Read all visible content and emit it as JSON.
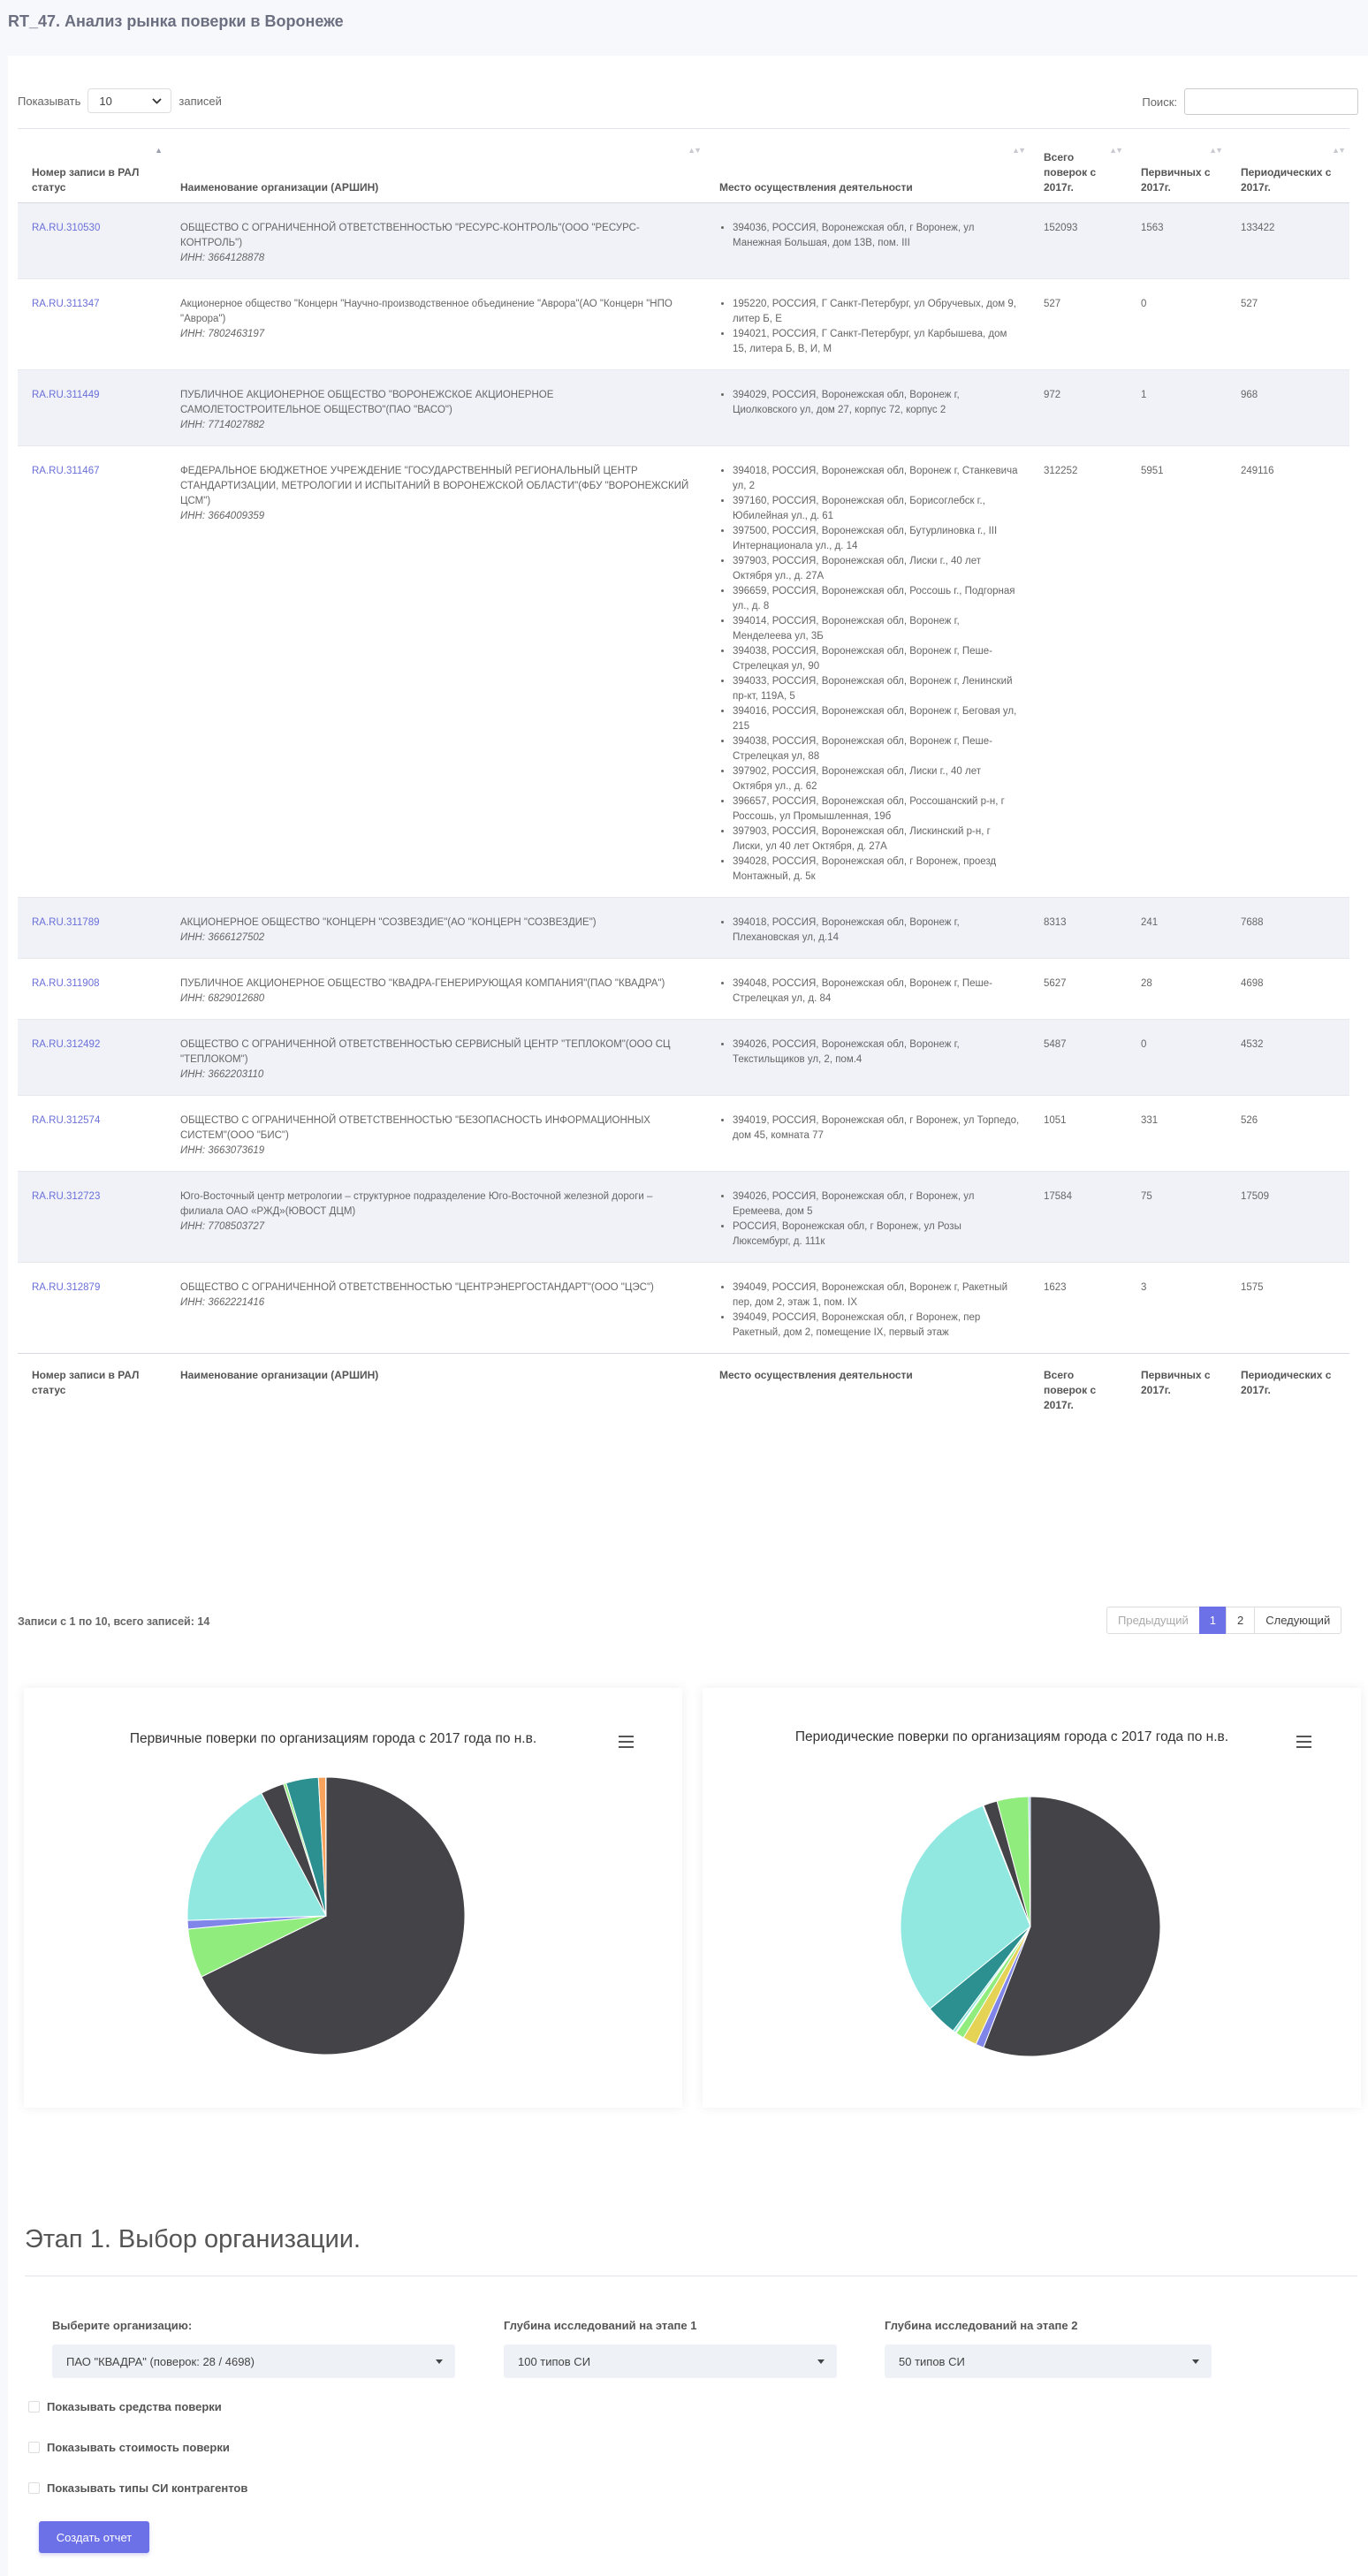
{
  "page_title": "RT_47. Анализ рынка поверки в Воронеже",
  "controls": {
    "show_label": "Показывать",
    "length_value": "10",
    "records_label": "записей",
    "search_label": "Поиск:",
    "search_value": ""
  },
  "table": {
    "headers": [
      "Номер записи в РАЛ статус",
      "Наименование организации (АРШИН)",
      "Место осуществления деятельности",
      "Всего поверок с 2017г.",
      "Первичных с 2017г.",
      "Периодических с 2017г."
    ],
    "rows": [
      {
        "id": "RA.RU.310530",
        "org": "ОБЩЕСТВО С ОГРАНИЧЕННОЙ ОТВЕТСТВЕННОСТЬЮ \"РЕСУРС-КОНТРОЛЬ\"(ООО \"РЕСУРС-КОНТРОЛЬ\")",
        "inn": "ИНН: 3664128878",
        "places": [
          "394036, РОССИЯ, Воронежская обл, г Воронеж, ул Манежная Большая, дом 13В, пом. III"
        ],
        "total": "152093",
        "primary": "1563",
        "periodic": "133422"
      },
      {
        "id": "RA.RU.311347",
        "org": "Акционерное общество \"Концерн \"Научно-производственное объединение \"Аврора\"(АО \"Концерн \"НПО \"Аврора\")",
        "inn": "ИНН: 7802463197",
        "places": [
          "195220, РОССИЯ, Г Санкт-Петербург, ул Обручевых, дом 9, литер Б, Е",
          "194021, РОССИЯ, Г Санкт-Петербург, ул Карбышева, дом 15, литера Б, В, И, М"
        ],
        "total": "527",
        "primary": "0",
        "periodic": "527"
      },
      {
        "id": "RA.RU.311449",
        "org": "ПУБЛИЧНОЕ АКЦИОНЕРНОЕ ОБЩЕСТВО \"ВОРОНЕЖСКОЕ АКЦИОНЕРНОЕ САМОЛЕТОСТРОИТЕЛЬНОЕ ОБЩЕСТВО\"(ПАО \"ВАСО\")",
        "inn": "ИНН: 7714027882",
        "places": [
          "394029, РОССИЯ, Воронежская обл, Воронеж г, Циолковского ул, дом 27, корпус 72, корпус 2"
        ],
        "total": "972",
        "primary": "1",
        "periodic": "968"
      },
      {
        "id": "RA.RU.311467",
        "org": "ФЕДЕРАЛЬНОЕ БЮДЖЕТНОЕ УЧРЕЖДЕНИЕ \"ГОСУДАРСТВЕННЫЙ РЕГИОНАЛЬНЫЙ ЦЕНТР СТАНДАРТИЗАЦИИ, МЕТРОЛОГИИ И ИСПЫТАНИЙ В ВОРОНЕЖСКОЙ ОБЛАСТИ\"(ФБУ \"ВОРОНЕЖСКИЙ ЦСМ\")",
        "inn": "ИНН: 3664009359",
        "places": [
          "394018, РОССИЯ, Воронежская обл, Воронеж г, Станкевича ул, 2",
          "397160, РОССИЯ, Воронежская обл, Борисоглебск г., Юбилейная ул., д. 61",
          "397500, РОССИЯ, Воронежская обл, Бутурлиновка г., III Интернационала ул., д. 14",
          "397903, РОССИЯ, Воронежская обл, Лиски г., 40 лет Октября ул., д. 27А",
          "396659, РОССИЯ, Воронежская обл, Россошь г., Подгорная ул., д. 8",
          "394014, РОССИЯ, Воронежская обл, Воронеж г, Менделеева ул, 3Б",
          "394038, РОССИЯ, Воронежская обл, Воронеж г, Пеше-Стрелецкая ул, 90",
          "394033, РОССИЯ, Воронежская обл, Воронеж г, Ленинский пр-кт, 119А, 5",
          "394016, РОССИЯ, Воронежская обл, Воронеж г, Беговая ул, 215",
          "394038, РОССИЯ, Воронежская обл, Воронеж г, Пеше-Стрелецкая ул, 88",
          "397902, РОССИЯ, Воронежская обл, Лиски г., 40 лет Октября ул., д. 62",
          "396657, РОССИЯ, Воронежская обл, Россошанский р-н, г Россошь, ул Промышленная, 19б",
          "397903, РОССИЯ, Воронежская обл, Лискинский р-н, г Лиски, ул 40 лет Октября, д. 27А",
          "394028, РОССИЯ, Воронежская обл, г Воронеж, проезд Монтажный, д. 5к"
        ],
        "total": "312252",
        "primary": "5951",
        "periodic": "249116"
      },
      {
        "id": "RA.RU.311789",
        "org": "АКЦИОНЕРНОЕ ОБЩЕСТВО \"КОНЦЕРН \"СОЗВЕЗДИЕ\"(АО \"КОНЦЕРН \"СОЗВЕЗДИЕ\")",
        "inn": "ИНН: 3666127502",
        "places": [
          "394018, РОССИЯ, Воронежская обл, Воронеж г, Плехановская ул, д.14"
        ],
        "total": "8313",
        "primary": "241",
        "periodic": "7688"
      },
      {
        "id": "RA.RU.311908",
        "org": "ПУБЛИЧНОЕ АКЦИОНЕРНОЕ ОБЩЕСТВО \"КВАДРА-ГЕНЕРИРУЮЩАЯ КОМПАНИЯ\"(ПАО \"КВАДРА\")",
        "inn": "ИНН: 6829012680",
        "places": [
          "394048, РОССИЯ, Воронежская обл, Воронеж г, Пеше-Стрелецкая ул, д. 84"
        ],
        "total": "5627",
        "primary": "28",
        "periodic": "4698"
      },
      {
        "id": "RA.RU.312492",
        "org": "ОБЩЕСТВО С ОГРАНИЧЕННОЙ ОТВЕТСТВЕННОСТЬЮ СЕРВИСНЫЙ ЦЕНТР \"ТЕПЛОКОМ\"(ООО СЦ \"ТЕПЛОКОМ\")",
        "inn": "ИНН: 3662203110",
        "places": [
          "394026, РОССИЯ, Воронежская обл, Воронеж г, Текстильщиков ул, 2, пом.4"
        ],
        "total": "5487",
        "primary": "0",
        "periodic": "4532"
      },
      {
        "id": "RA.RU.312574",
        "org": "ОБЩЕСТВО С ОГРАНИЧЕННОЙ ОТВЕТСТВЕННОСТЬЮ \"БЕЗОПАСНОСТЬ ИНФОРМАЦИОННЫХ СИСТЕМ\"(ООО \"БИС\")",
        "inn": "ИНН: 3663073619",
        "places": [
          "394019, РОССИЯ, Воронежская обл, г Воронеж, ул Торпедо, дом 45, комната 77"
        ],
        "total": "1051",
        "primary": "331",
        "periodic": "526"
      },
      {
        "id": "RA.RU.312723",
        "org": "Юго-Восточный центр метрологии – структурное подразделение Юго-Восточной железной дороги – филиала ОАО «РЖД»(ЮВОСТ ДЦМ)",
        "inn": "ИНН: 7708503727",
        "places": [
          "394026, РОССИЯ, Воронежская обл, г Воронеж, ул Еремеева, дом 5",
          "РОССИЯ, Воронежская обл, г Воронеж, ул Розы Люксембург, д. 111к"
        ],
        "total": "17584",
        "primary": "75",
        "periodic": "17509"
      },
      {
        "id": "RA.RU.312879",
        "org": "ОБЩЕСТВО С ОГРАНИЧЕННОЙ ОТВЕТСТВЕННОСТЬЮ \"ЦЕНТРЭНЕРГОСТАНДАРТ\"(ООО \"ЦЭС\")",
        "inn": "ИНН: 3662221416",
        "places": [
          "394049, РОССИЯ, Воронежская обл, Воронеж г, Ракетный пер, дом 2, этаж 1, пом. IX",
          "394049, РОССИЯ, Воронежская обл, г Воронеж, пер Ракетный, дом 2, помещение IX, первый этаж"
        ],
        "total": "1623",
        "primary": "3",
        "periodic": "1575"
      }
    ]
  },
  "info_text": "Записи с 1 по 10, всего записей: 14",
  "pagination": {
    "prev": "Предыдущий",
    "pages": [
      "1",
      "2"
    ],
    "current": "1",
    "next": "Следующий"
  },
  "chart_data": [
    {
      "type": "pie",
      "title": "Первичные поверки по организациям города с 2017 года по н.в.",
      "values": [
        5951,
        502,
        88,
        1563,
        241,
        28,
        0,
        331,
        75,
        3
      ],
      "colors": [
        "#434348",
        "#90ed7d",
        "#8085e9",
        "#91e8e1",
        "#434348",
        "#90ed7d",
        "#f7a35c",
        "#2b908f",
        "#f7a35c",
        "#90ed7d"
      ]
    },
    {
      "type": "pie",
      "title": "Периодические поверки по организациям города с 2017 года по н.в.",
      "values": [
        249116,
        4532,
        7688,
        4698,
        526,
        1575,
        17509,
        133422,
        527,
        7688,
        17509,
        968
      ],
      "colors": [
        "#434348",
        "#8085e9",
        "#e4d354",
        "#90ed7d",
        "#f7a35c",
        "#91e8e1",
        "#2b908f",
        "#91e8e1",
        "#f15c80",
        "#434348",
        "#90ed7d",
        "#7cb5ec"
      ]
    }
  ],
  "stage": {
    "title": "Этап 1. Выбор организации.",
    "org_label": "Выберите организацию:",
    "org_value": "ПАО \"КВАДРА\" (поверок: 28 / 4698)",
    "depth1_label": "Глубина исследований на этапе 1",
    "depth1_value": "100 типов СИ",
    "depth2_label": "Глубина исследований на этапе 2",
    "depth2_value": "50 типов СИ",
    "checkbox1": "Показывать средства поверки",
    "checkbox2": "Показывать стоимость поверки",
    "checkbox3": "Показывать типы СИ контрагентов",
    "button": "Создать отчет"
  }
}
